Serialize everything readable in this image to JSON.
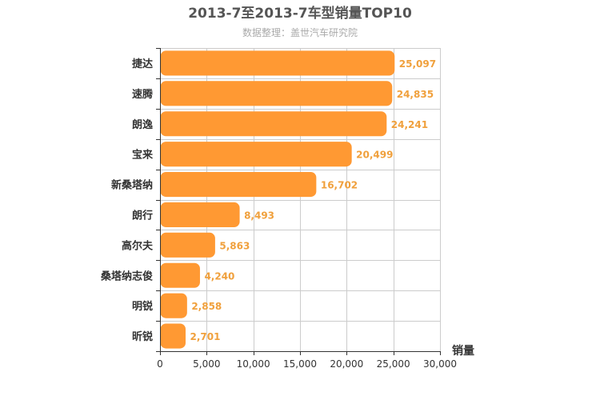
{
  "chart_data": {
    "type": "bar",
    "orientation": "horizontal",
    "title": "2013-7至2013-7车型销量TOP10",
    "subtitle": "数据整理：盖世汽车研究院",
    "xlabel": "销量",
    "ylabel": "",
    "categories": [
      "捷达",
      "速腾",
      "朗逸",
      "宝来",
      "新桑塔纳",
      "朗行",
      "高尔夫",
      "桑塔纳志俊",
      "明锐",
      "昕锐"
    ],
    "values": [
      25097,
      24835,
      24241,
      20499,
      16702,
      8493,
      5863,
      4240,
      2858,
      2701
    ],
    "value_labels": [
      "25,097",
      "24,835",
      "24,241",
      "20,499",
      "16,702",
      "8,493",
      "5,863",
      "4,240",
      "2,858",
      "2,701"
    ],
    "xlim": [
      0,
      30000
    ],
    "xticks": [
      0,
      5000,
      10000,
      15000,
      20000,
      25000,
      30000
    ],
    "xtick_labels": [
      "0",
      "5,000",
      "10,000",
      "15,000",
      "20,000",
      "25,000",
      "30,000"
    ],
    "grid": true,
    "legend": "none",
    "bar_color": "#ff9933",
    "value_label_color": "#f0a03c"
  }
}
